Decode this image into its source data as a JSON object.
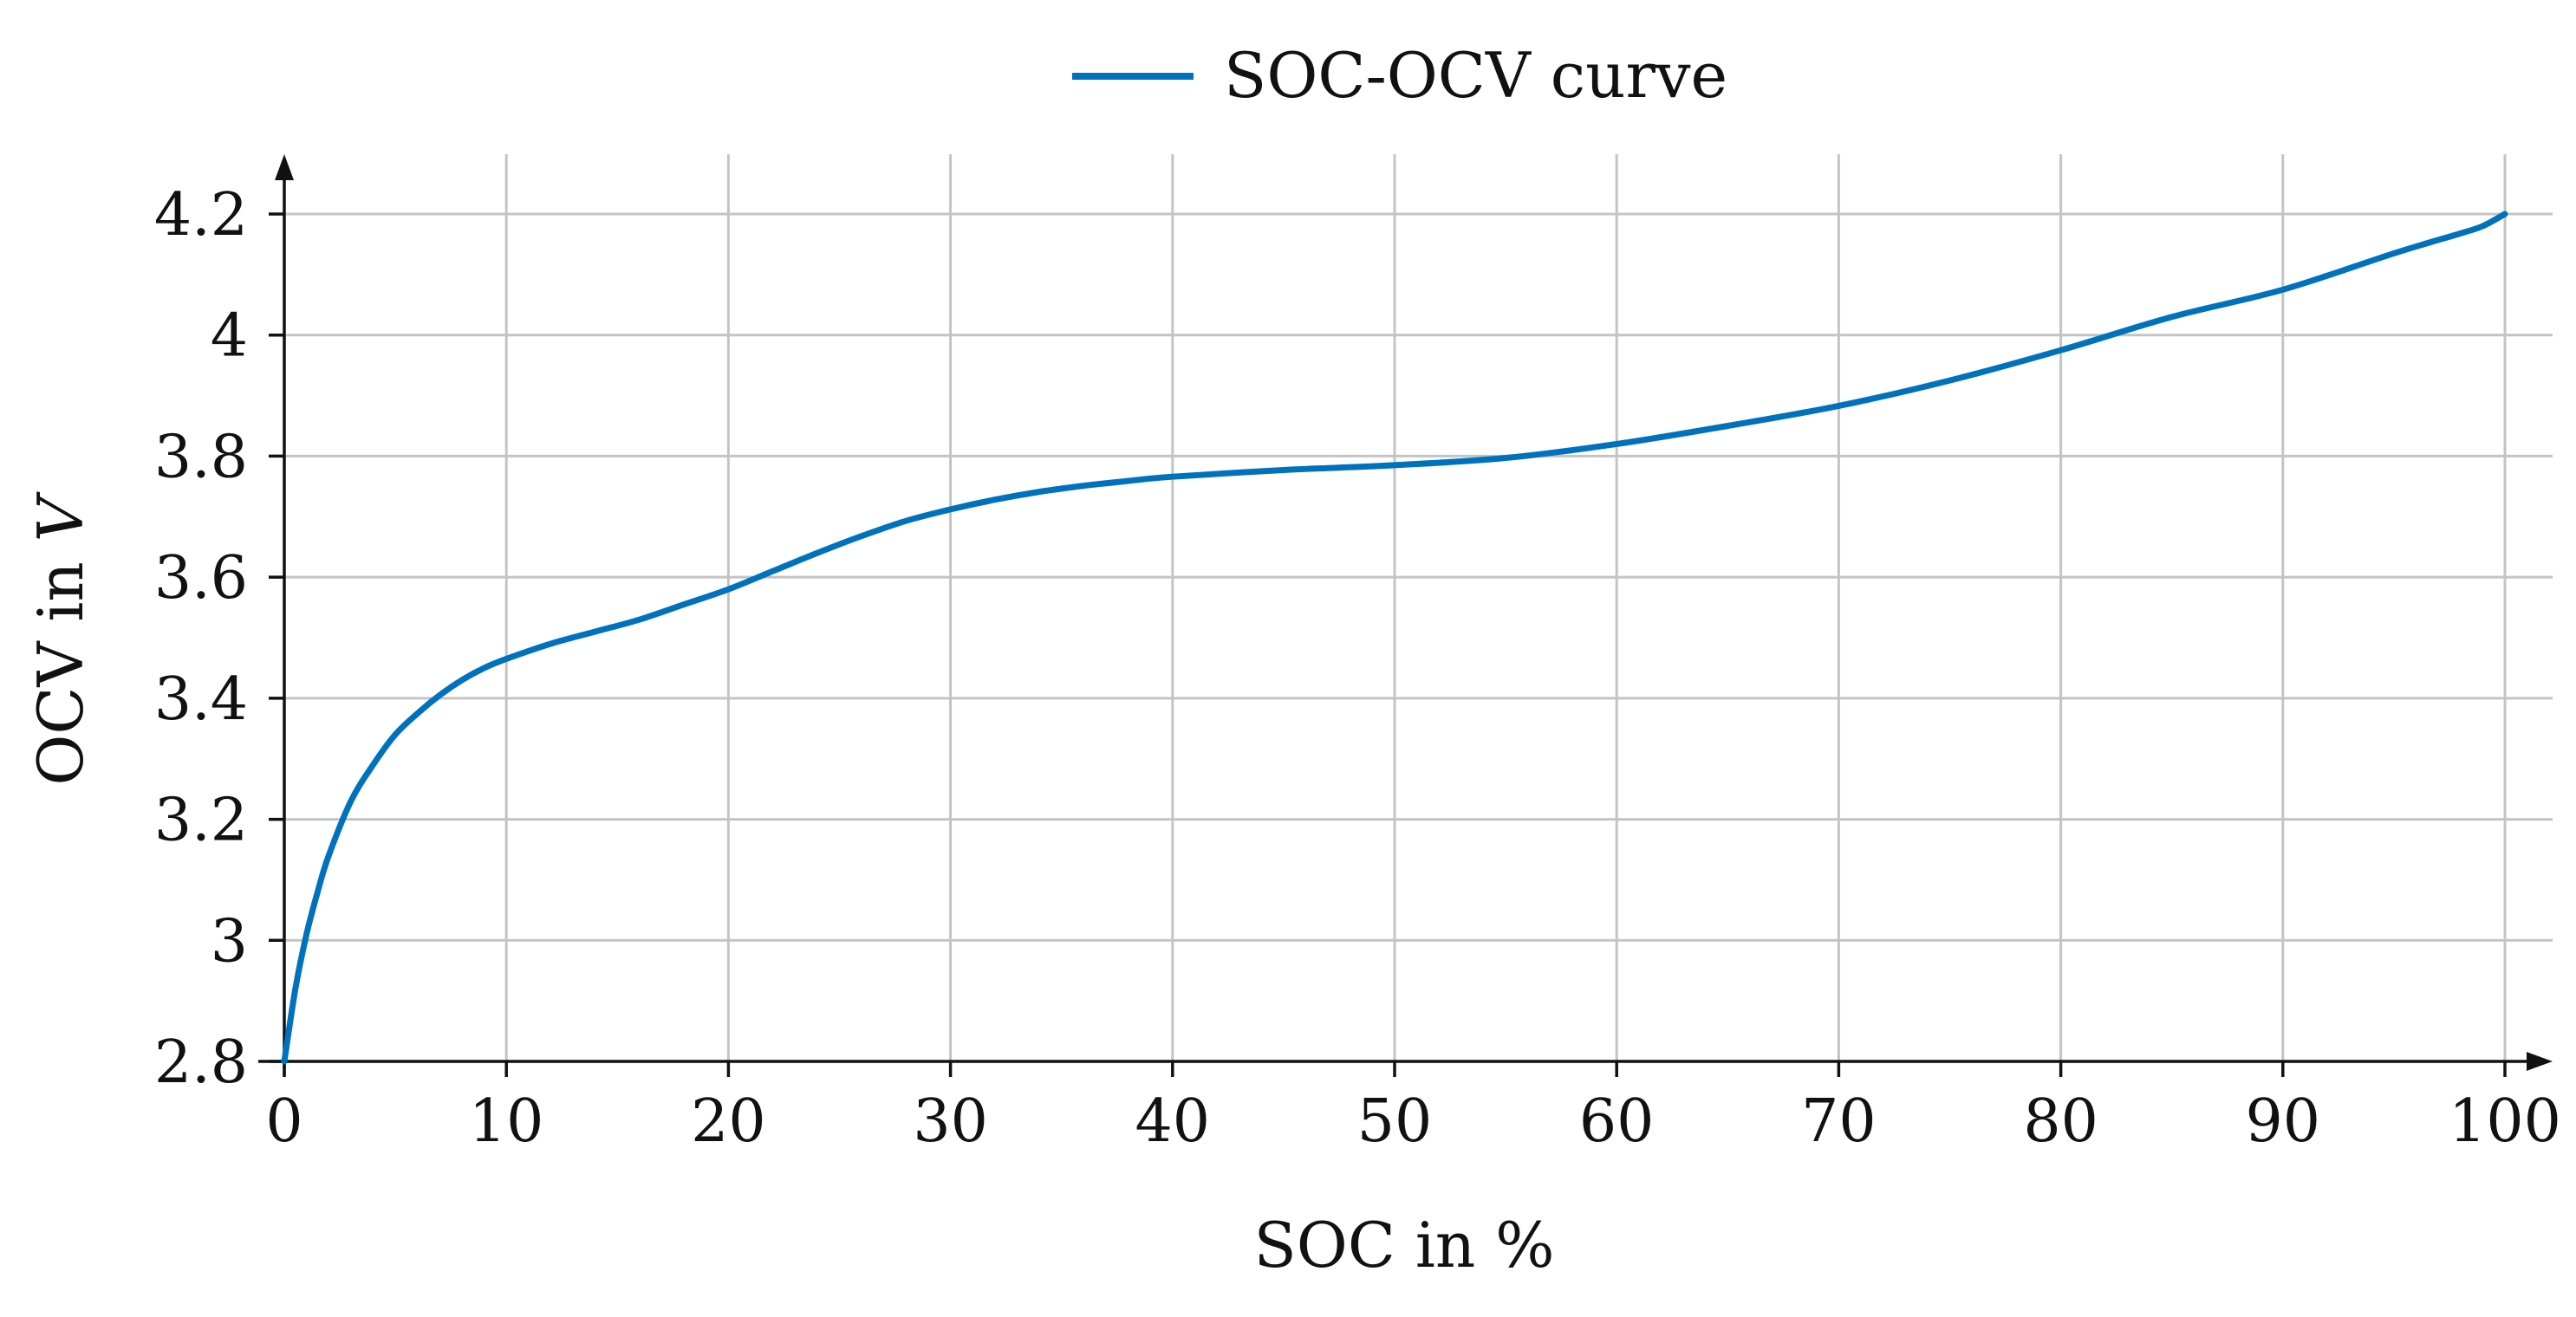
{
  "chart_data": {
    "type": "line",
    "title": "",
    "xlabel": "SOC in %",
    "ylabel_main": "OCV in ",
    "ylabel_unit": "V",
    "xlim": [
      0,
      100
    ],
    "ylim": [
      2.8,
      4.3
    ],
    "grid": true,
    "legend_position": "top-center",
    "x_ticks": [
      0,
      10,
      20,
      30,
      40,
      50,
      60,
      70,
      80,
      90,
      100
    ],
    "x_tick_labels": [
      "0",
      "10",
      "20",
      "30",
      "40",
      "50",
      "60",
      "70",
      "80",
      "90",
      "100"
    ],
    "y_ticks": [
      2.8,
      3.0,
      3.2,
      3.4,
      3.6,
      3.8,
      4.0,
      4.2
    ],
    "y_tick_labels": [
      "2.8",
      "3",
      "3.2",
      "3.4",
      "3.6",
      "3.8",
      "4",
      "4.2"
    ],
    "series": [
      {
        "name": "SOC-OCV curve",
        "color": "#0072bd",
        "x": [
          0,
          0.5,
          1,
          1.5,
          2,
          3,
          4,
          5,
          6,
          7,
          8,
          9,
          10,
          12,
          14,
          16,
          18,
          20,
          22,
          24,
          26,
          28,
          30,
          32,
          34,
          36,
          38,
          40,
          45,
          50,
          55,
          60,
          65,
          70,
          75,
          80,
          85,
          90,
          95,
          98,
          99,
          100
        ],
        "y": [
          2.8,
          2.92,
          3.01,
          3.08,
          3.14,
          3.23,
          3.29,
          3.34,
          3.375,
          3.405,
          3.43,
          3.45,
          3.465,
          3.49,
          3.51,
          3.53,
          3.555,
          3.58,
          3.61,
          3.64,
          3.668,
          3.693,
          3.712,
          3.728,
          3.741,
          3.751,
          3.759,
          3.766,
          3.777,
          3.785,
          3.797,
          3.82,
          3.85,
          3.883,
          3.925,
          3.975,
          4.03,
          4.075,
          4.135,
          4.168,
          4.18,
          4.2
        ]
      }
    ]
  }
}
